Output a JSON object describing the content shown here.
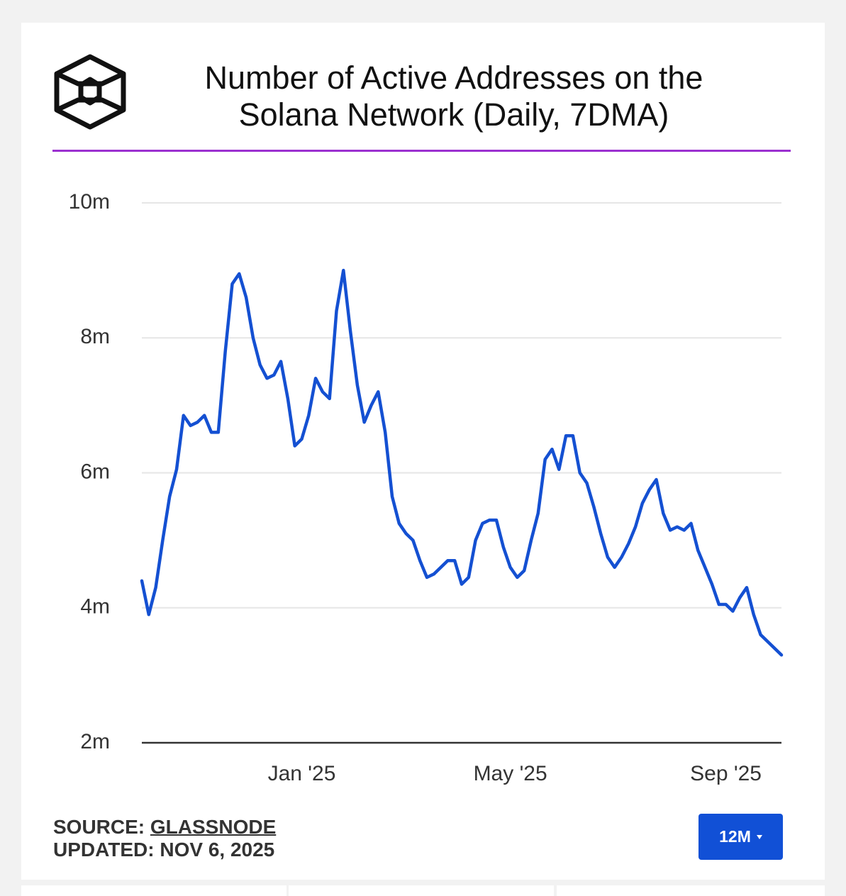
{
  "chart_data": {
    "type": "line",
    "title": "Number of Active Addresses on the Solana Network (Daily, 7DMA)",
    "categories": [
      null,
      null,
      null,
      null,
      null,
      null,
      null,
      null,
      null,
      null,
      null,
      null,
      null,
      null,
      null,
      null,
      null,
      null,
      null,
      null,
      null,
      null,
      null,
      "Jan '25",
      null,
      null,
      null,
      null,
      null,
      null,
      null,
      null,
      null,
      null,
      null,
      null,
      null,
      null,
      null,
      null,
      null,
      null,
      null,
      null,
      null,
      null,
      null,
      null,
      null,
      null,
      null,
      null,
      null,
      "May '25",
      null,
      null,
      null,
      null,
      null,
      null,
      null,
      null,
      null,
      null,
      null,
      null,
      null,
      null,
      null,
      null,
      null,
      null,
      null,
      null,
      null,
      null,
      null,
      null,
      null,
      null,
      null,
      null,
      null,
      null,
      "Sep '25",
      null,
      null,
      null,
      null,
      null,
      null,
      null,
      null
    ],
    "values": [
      4400000,
      3900000,
      4300000,
      5000000,
      5650000,
      6050000,
      6850000,
      6700000,
      6750000,
      6850000,
      6600000,
      6600000,
      7800000,
      8800000,
      8950000,
      8600000,
      8000000,
      7600000,
      7400000,
      7450000,
      7650000,
      7100000,
      6400000,
      6500000,
      6850000,
      7400000,
      7200000,
      7100000,
      8400000,
      9000000,
      8100000,
      7300000,
      6750000,
      7000000,
      7200000,
      6600000,
      5650000,
      5250000,
      5100000,
      5000000,
      4700000,
      4450000,
      4500000,
      4600000,
      4700000,
      4700000,
      4350000,
      4450000,
      5000000,
      5250000,
      5300000,
      5300000,
      4900000,
      4600000,
      4450000,
      4550000,
      5000000,
      5400000,
      6200000,
      6350000,
      6050000,
      6550000,
      6550000,
      6000000,
      5850000,
      5500000,
      5100000,
      4750000,
      4600000,
      4750000,
      4950000,
      5200000,
      5550000,
      5750000,
      5900000,
      5400000,
      5150000,
      5200000,
      5150000,
      5250000,
      4850000,
      4600000,
      4350000,
      4050000,
      4050000,
      3950000,
      4150000,
      4300000,
      3900000,
      3600000,
      3500000,
      3400000,
      3300000
    ],
    "color": "#1450d2",
    "ylim": [
      2000000,
      10000000
    ],
    "yticks": [
      {
        "value": 2000000,
        "label": "2m"
      },
      {
        "value": 4000000,
        "label": "4m"
      },
      {
        "value": 6000000,
        "label": "6m"
      },
      {
        "value": 8000000,
        "label": "8m"
      },
      {
        "value": 10000000,
        "label": "10m"
      }
    ],
    "grid": true
  },
  "footer": {
    "source_label": "SOURCE:",
    "source": "GLASSNODE",
    "updated_label": "UPDATED:",
    "updated": "NOV 6, 2025"
  },
  "controls": {
    "range_button": "12M"
  }
}
